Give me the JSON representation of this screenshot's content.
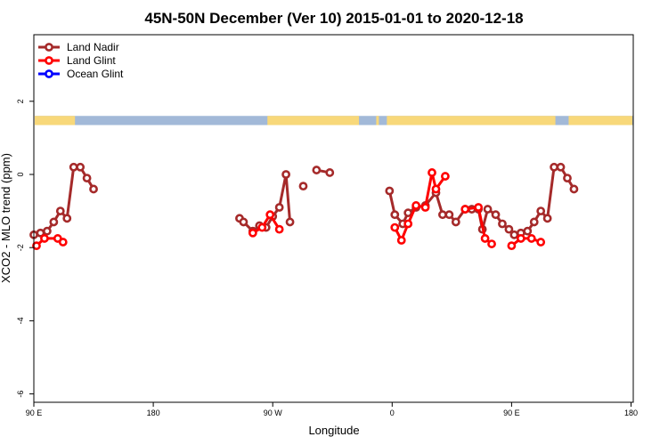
{
  "chart_data": {
    "type": "line",
    "title": "45N-50N December (Ver 10)   2015-01-01 to 2020-12-18",
    "xlabel": "Longitude",
    "ylabel": "XCO2 - MLO trend (ppm)",
    "xlim": [
      90,
      450
    ],
    "ylim": [
      -6.2,
      3.8
    ],
    "x_ticks": [
      {
        "value": 90,
        "label": "90 E"
      },
      {
        "value": 180,
        "label": "180"
      },
      {
        "value": 270,
        "label": "90 W"
      },
      {
        "value": 360,
        "label": "0"
      },
      {
        "value": 450,
        "label": "90 E"
      },
      {
        "value": 540,
        "label": "180"
      }
    ],
    "y_ticks": [
      {
        "value": 2,
        "label": "2"
      },
      {
        "value": 0,
        "label": "0"
      },
      {
        "value": -2,
        "label": "-2"
      },
      {
        "value": -4,
        "label": "-4"
      },
      {
        "value": -6,
        "label": "-6"
      }
    ],
    "grid": false,
    "legend_position": "top-left",
    "land_band": {
      "y_top": 1.6,
      "y_bottom": 1.35,
      "ocean_color": "#a2b9d8",
      "land_color": "#f8d87a"
    },
    "series": [
      {
        "name": "Land Nadir",
        "color": "#a52a2a",
        "segments": [
          [
            [
              90,
              -1.65
            ],
            [
              95,
              -1.6
            ],
            [
              100,
              -1.55
            ],
            [
              105,
              -1.3
            ],
            [
              110,
              -1.0
            ],
            [
              115,
              -1.2
            ],
            [
              120,
              0.2
            ],
            [
              125,
              0.2
            ],
            [
              130,
              -0.1
            ],
            [
              135,
              -0.4
            ]
          ],
          [
            [
              245,
              -1.2
            ],
            [
              248,
              -1.3
            ],
            [
              255,
              -1.55
            ],
            [
              260,
              -1.4
            ],
            [
              265,
              -1.45
            ],
            [
              270,
              -1.15
            ],
            [
              275,
              -0.9
            ],
            [
              280,
              0.0
            ],
            [
              283,
              -1.3
            ]
          ],
          [
            [
              293,
              -0.32
            ]
          ],
          [
            [
              303,
              0.12
            ],
            [
              313,
              0.05
            ]
          ],
          [
            [
              358,
              -0.45
            ],
            [
              362,
              -1.1
            ],
            [
              368,
              -1.35
            ],
            [
              372,
              -1.05
            ],
            [
              378,
              -0.9
            ],
            [
              385,
              -0.85
            ],
            [
              393,
              -0.5
            ],
            [
              398,
              -1.1
            ],
            [
              403,
              -1.1
            ],
            [
              408,
              -1.3
            ],
            [
              415,
              -0.95
            ],
            [
              420,
              -0.95
            ],
            [
              425,
              -0.95
            ],
            [
              428,
              -1.5
            ],
            [
              432,
              -0.95
            ],
            [
              438,
              -1.1
            ],
            [
              443,
              -1.35
            ],
            [
              448,
              -1.5
            ],
            [
              452,
              -1.65
            ],
            [
              457,
              -1.6
            ],
            [
              462,
              -1.55
            ],
            [
              467,
              -1.3
            ],
            [
              472,
              -1.0
            ],
            [
              477,
              -1.2
            ],
            [
              482,
              0.2
            ],
            [
              487,
              0.2
            ],
            [
              492,
              -0.1
            ],
            [
              497,
              -0.4
            ]
          ]
        ]
      },
      {
        "name": "Land Glint",
        "color": "#ff0000",
        "segments": [
          [
            [
              92,
              -1.95
            ],
            [
              98,
              -1.75
            ],
            [
              108,
              -1.75
            ],
            [
              112,
              -1.85
            ]
          ],
          [
            [
              255,
              -1.6
            ],
            [
              262,
              -1.45
            ],
            [
              268,
              -1.1
            ],
            [
              275,
              -1.5
            ]
          ],
          [
            [
              362,
              -1.45
            ],
            [
              367,
              -1.8
            ],
            [
              372,
              -1.35
            ],
            [
              378,
              -0.85
            ],
            [
              385,
              -0.9
            ],
            [
              390,
              0.05
            ],
            [
              393,
              -0.4
            ],
            [
              400,
              -0.05
            ]
          ],
          [
            [
              415,
              -0.95
            ],
            [
              425,
              -0.9
            ],
            [
              430,
              -1.75
            ],
            [
              435,
              -1.9
            ]
          ],
          [
            [
              450,
              -1.95
            ],
            [
              457,
              -1.75
            ],
            [
              465,
              -1.75
            ],
            [
              472,
              -1.85
            ]
          ]
        ]
      },
      {
        "name": "Ocean Glint",
        "color": "#0000ff",
        "segments": []
      }
    ]
  }
}
